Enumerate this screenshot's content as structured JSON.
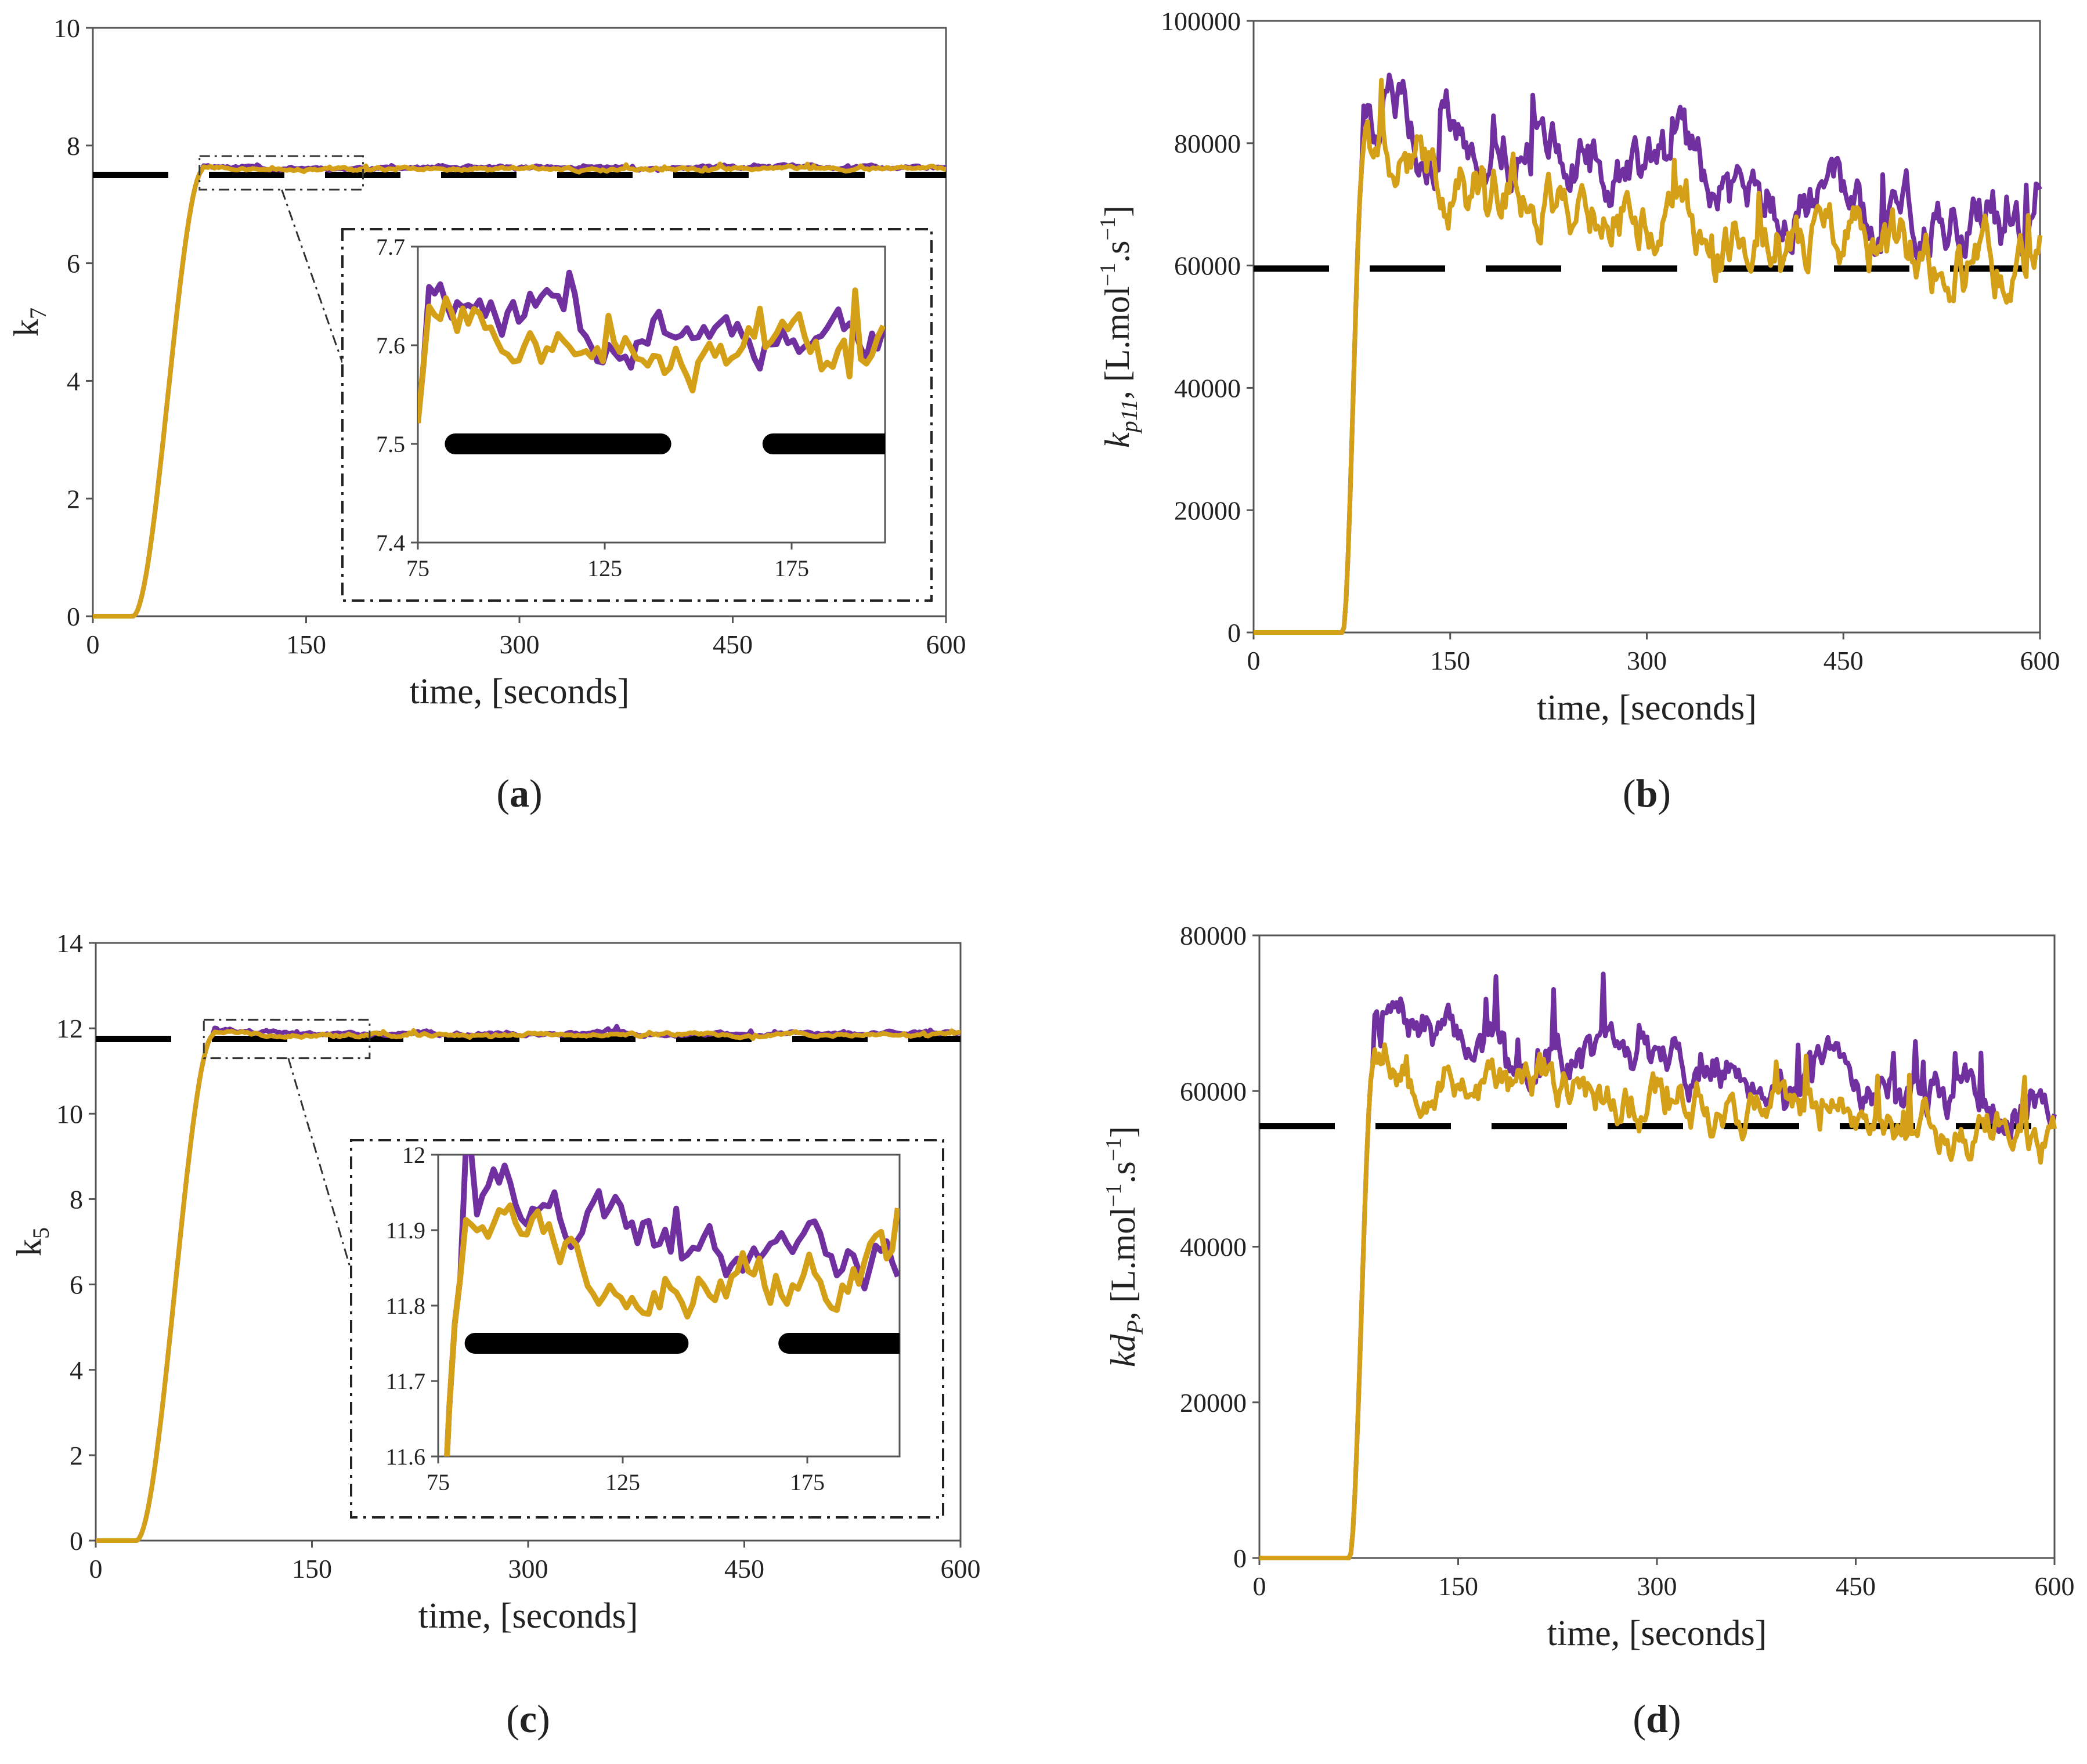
{
  "colors": {
    "purple": "#7030A0",
    "gold": "#D4A017",
    "setpoint": "#000000",
    "axis": "#555555"
  },
  "chart_data": [
    {
      "id": "a",
      "type": "line",
      "panel_label": "a",
      "xlabel": "time, [seconds]",
      "ylabel": "k7",
      "ylabel_main": "k",
      "ylabel_sub": "7",
      "ylabel_italic": false,
      "xlim": [
        0,
        600
      ],
      "ylim": [
        0,
        10
      ],
      "xticks": [
        0,
        150,
        300,
        450,
        600
      ],
      "yticks": [
        0,
        2,
        4,
        6,
        8,
        10
      ],
      "setpoint": 7.5,
      "rise": {
        "start": 28,
        "end": 78,
        "final": 7.6,
        "overshoot": 0.05
      },
      "noise_amp": 0.035,
      "drift": 0,
      "purple_offset": 0.02,
      "gold_offset": 0.0,
      "seeds": [
        11,
        27
      ],
      "series": [
        {
          "name": "purple",
          "color": "#7030A0"
        },
        {
          "name": "gold",
          "color": "#D4A017"
        },
        {
          "name": "setpoint",
          "color": "#000000",
          "style": "dashed"
        }
      ],
      "inset": {
        "xlim": [
          75,
          200
        ],
        "ylim": [
          7.4,
          7.7
        ],
        "xticks": [
          75,
          125,
          175
        ],
        "yticks": [
          "7.4",
          "7.5",
          "7.6",
          "7.7"
        ],
        "zoom_xrange": [
          75,
          190
        ],
        "zoom_yrange": [
          7.25,
          7.82
        ]
      }
    },
    {
      "id": "b",
      "type": "line",
      "panel_label": "b",
      "xlabel": "time, [seconds]",
      "ylabel_main": "k",
      "ylabel_sub": "p11",
      "ylabel_unit": ", [L.mol",
      "ylabel_unit2": ".s",
      "ylabel_sup": "−1",
      "ylabel_italic": true,
      "xlim": [
        0,
        600
      ],
      "ylim": [
        0,
        100000
      ],
      "xticks": [
        0,
        150,
        300,
        450,
        600
      ],
      "yticks": [
        0,
        20000,
        40000,
        60000,
        80000,
        100000
      ],
      "setpoint": 59500,
      "rise": {
        "start": 68,
        "end": 84,
        "final": 78000,
        "overshoot": 5000
      },
      "noise_amp": 6000,
      "drift": -18000,
      "purple_offset": 5000,
      "gold_offset": -1500,
      "seeds": [
        5,
        41
      ]
    },
    {
      "id": "c",
      "type": "line",
      "panel_label": "c",
      "xlabel": "time, [seconds]",
      "ylabel_main": "k",
      "ylabel_sub": "5",
      "ylabel_italic": false,
      "xlim": [
        0,
        600
      ],
      "ylim": [
        0,
        14
      ],
      "xticks": [
        0,
        150,
        300,
        450,
        600
      ],
      "yticks": [
        0,
        2,
        4,
        6,
        8,
        10,
        12,
        14
      ],
      "setpoint": 11.75,
      "rise": {
        "start": 28,
        "end": 82,
        "final": 11.85,
        "overshoot": 0.08
      },
      "noise_amp": 0.05,
      "drift": 0,
      "purple_offset": 0.03,
      "gold_offset": 0.0,
      "seeds": [
        19,
        33
      ],
      "inset": {
        "xlim": [
          75,
          200
        ],
        "ylim": [
          11.6,
          12.0
        ],
        "xticks": [
          75,
          125,
          175
        ],
        "yticks": [
          "11.6",
          "11.7",
          "11.8",
          "11.9",
          "12"
        ],
        "zoom_xrange": [
          75,
          190
        ],
        "zoom_yrange": [
          11.3,
          12.2
        ]
      }
    },
    {
      "id": "d",
      "type": "line",
      "panel_label": "d",
      "xlabel": "time, [seconds]",
      "ylabel_main": "kd",
      "ylabel_sub": "P",
      "ylabel_unit": ", [L.mol",
      "ylabel_unit2": ".s",
      "ylabel_sup": "−1",
      "ylabel_italic": true,
      "xlim": [
        0,
        600
      ],
      "ylim": [
        0,
        80000
      ],
      "xticks": [
        0,
        150,
        300,
        450,
        600
      ],
      "yticks": [
        0,
        20000,
        40000,
        60000,
        80000
      ],
      "setpoint": 55500,
      "rise": {
        "start": 68,
        "end": 86,
        "final": 63500,
        "overshoot": 4000
      },
      "noise_amp": 3500,
      "drift": -8500,
      "purple_offset": 3500,
      "gold_offset": -1000,
      "seeds": [
        7,
        53
      ]
    }
  ]
}
